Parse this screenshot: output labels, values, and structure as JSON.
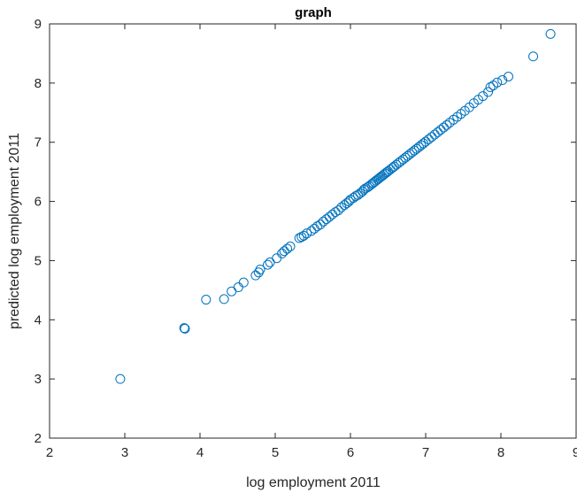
{
  "chart_data": {
    "type": "scatter",
    "title": "graph",
    "xlabel": "log employment 2011",
    "ylabel": "predicted log employment 2011",
    "xlim": [
      2,
      9
    ],
    "ylim": [
      2,
      9
    ],
    "xticks": [
      "2",
      "3",
      "4",
      "5",
      "6",
      "7",
      "8",
      "9"
    ],
    "yticks": [
      "2",
      "3",
      "4",
      "5",
      "6",
      "7",
      "8",
      "9"
    ],
    "grid": false,
    "marker_color": "#0072BD",
    "series": [
      {
        "points": [
          [
            2.94,
            3.0
          ],
          [
            3.79,
            3.86
          ],
          [
            3.8,
            3.85
          ],
          [
            4.08,
            4.34
          ],
          [
            4.32,
            4.35
          ],
          [
            4.42,
            4.48
          ],
          [
            4.51,
            4.55
          ],
          [
            4.58,
            4.63
          ],
          [
            4.74,
            4.75
          ],
          [
            4.78,
            4.8
          ],
          [
            4.8,
            4.85
          ],
          [
            4.9,
            4.93
          ],
          [
            4.93,
            4.97
          ],
          [
            5.02,
            5.04
          ],
          [
            5.09,
            5.12
          ],
          [
            5.12,
            5.16
          ],
          [
            5.16,
            5.2
          ],
          [
            5.2,
            5.24
          ],
          [
            5.32,
            5.38
          ],
          [
            5.35,
            5.4
          ],
          [
            5.38,
            5.42
          ],
          [
            5.42,
            5.46
          ],
          [
            5.48,
            5.5
          ],
          [
            5.52,
            5.54
          ],
          [
            5.56,
            5.58
          ],
          [
            5.6,
            5.61
          ],
          [
            5.64,
            5.66
          ],
          [
            5.68,
            5.7
          ],
          [
            5.72,
            5.74
          ],
          [
            5.76,
            5.78
          ],
          [
            5.8,
            5.82
          ],
          [
            5.84,
            5.85
          ],
          [
            5.88,
            5.9
          ],
          [
            5.92,
            5.94
          ],
          [
            5.95,
            5.97
          ],
          [
            5.98,
            6.0
          ],
          [
            6.0,
            6.03
          ],
          [
            6.04,
            6.06
          ],
          [
            6.07,
            6.09
          ],
          [
            6.1,
            6.11
          ],
          [
            6.13,
            6.14
          ],
          [
            6.16,
            6.17
          ],
          [
            6.18,
            6.2
          ],
          [
            6.2,
            6.22
          ],
          [
            6.23,
            6.24
          ],
          [
            6.25,
            6.26
          ],
          [
            6.28,
            6.29
          ],
          [
            6.3,
            6.31
          ],
          [
            6.32,
            6.33
          ],
          [
            6.34,
            6.35
          ],
          [
            6.36,
            6.37
          ],
          [
            6.38,
            6.39
          ],
          [
            6.4,
            6.41
          ],
          [
            6.42,
            6.43
          ],
          [
            6.44,
            6.45
          ],
          [
            6.46,
            6.47
          ],
          [
            6.48,
            6.49
          ],
          [
            6.5,
            6.51
          ],
          [
            6.53,
            6.54
          ],
          [
            6.56,
            6.57
          ],
          [
            6.58,
            6.59
          ],
          [
            6.61,
            6.62
          ],
          [
            6.64,
            6.65
          ],
          [
            6.67,
            6.68
          ],
          [
            6.7,
            6.71
          ],
          [
            6.73,
            6.74
          ],
          [
            6.76,
            6.77
          ],
          [
            6.79,
            6.8
          ],
          [
            6.82,
            6.83
          ],
          [
            6.85,
            6.86
          ],
          [
            6.88,
            6.89
          ],
          [
            6.91,
            6.92
          ],
          [
            6.94,
            6.95
          ],
          [
            6.97,
            6.98
          ],
          [
            7.0,
            7.01
          ],
          [
            7.04,
            7.05
          ],
          [
            7.08,
            7.09
          ],
          [
            7.12,
            7.13
          ],
          [
            7.16,
            7.17
          ],
          [
            7.2,
            7.21
          ],
          [
            7.24,
            7.25
          ],
          [
            7.28,
            7.29
          ],
          [
            7.32,
            7.33
          ],
          [
            7.37,
            7.38
          ],
          [
            7.42,
            7.43
          ],
          [
            7.47,
            7.48
          ],
          [
            7.52,
            7.53
          ],
          [
            7.58,
            7.59
          ],
          [
            7.64,
            7.66
          ],
          [
            7.7,
            7.72
          ],
          [
            7.76,
            7.78
          ],
          [
            7.83,
            7.85
          ],
          [
            7.86,
            7.93
          ],
          [
            7.9,
            7.96
          ],
          [
            7.95,
            8.01
          ],
          [
            8.02,
            8.05
          ],
          [
            8.1,
            8.11
          ],
          [
            8.43,
            8.45
          ],
          [
            8.66,
            8.83
          ]
        ]
      }
    ]
  }
}
